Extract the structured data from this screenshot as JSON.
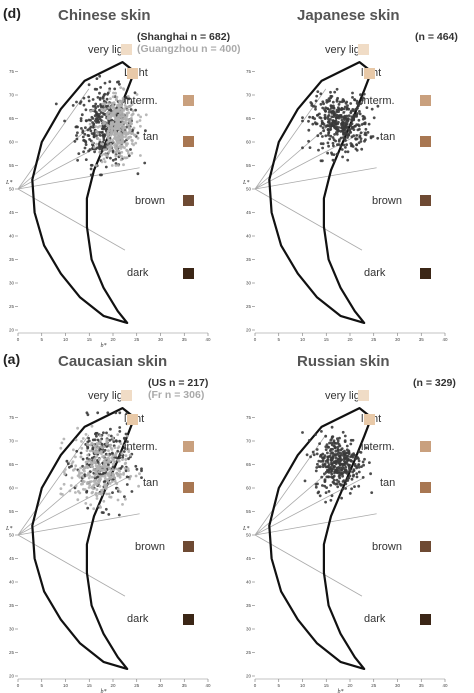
{
  "figure": {
    "panel_letters": [
      {
        "id": "top",
        "text": "(d)"
      },
      {
        "id": "bottom",
        "text": "(a)"
      }
    ]
  },
  "colors": {
    "outline": "#111111",
    "sector_line": "#aaaaaa",
    "series_dark": "#3a3a3a",
    "series_light": "#b0b0b0",
    "note_dark": "#333333",
    "note_light": "#aaaaaa",
    "swatch_very_light": "#f0dcc6",
    "swatch_light": "#e8c9a8",
    "swatch_intermediate": "#c9a07e",
    "swatch_tan": "#a87752",
    "swatch_brown": "#6e4a33",
    "swatch_dark": "#3b2616"
  },
  "categories": [
    "very light",
    "light",
    "interm.",
    "tan",
    "brown",
    "dark"
  ],
  "chart_data": [
    {
      "type": "scatter",
      "title": "Chinese skin",
      "xlabel": "b*",
      "ylabel": "L*",
      "xlim": [
        0,
        40
      ],
      "ylim": [
        20,
        80
      ],
      "xticks": [
        0,
        5,
        10,
        15,
        20,
        25,
        30,
        35,
        40
      ],
      "yticks": [
        20,
        25,
        30,
        35,
        40,
        45,
        50,
        55,
        60,
        65,
        70,
        75
      ],
      "grid": false,
      "category_labels": [
        "very light",
        "Light",
        "interm.",
        "tan",
        "brown",
        "dark"
      ],
      "notes": [
        {
          "text": "(Shanghai n = 682)",
          "tone": "dark"
        },
        {
          "text": "(Guangzhou n = 400)",
          "tone": "light"
        }
      ],
      "series": [
        {
          "name": "Shanghai n = 682",
          "color": "#3a3a3a",
          "n": 682,
          "cluster": {
            "b_mean": 18.5,
            "b_sd": 3.0,
            "L_mean": 63.5,
            "L_sd": 4.0,
            "b_range": [
              8,
              28
            ],
            "L_range": [
              53,
              74
            ]
          }
        },
        {
          "name": "Guangzhou n = 400",
          "color": "#b0b0b0",
          "n": 400,
          "cluster": {
            "b_mean": 21.0,
            "b_sd": 2.0,
            "L_mean": 63.0,
            "L_sd": 3.5,
            "b_range": [
              14,
              27
            ],
            "L_range": [
              55,
              72
            ]
          }
        }
      ]
    },
    {
      "type": "scatter",
      "title": "Japanese skin",
      "xlabel": "",
      "ylabel": "L*",
      "xlim": [
        0,
        40
      ],
      "ylim": [
        20,
        80
      ],
      "xticks": [
        0,
        5,
        10,
        15,
        20,
        25,
        30,
        35,
        40
      ],
      "yticks": [
        20,
        25,
        30,
        35,
        40,
        45,
        50,
        55,
        60,
        65,
        70,
        75
      ],
      "grid": false,
      "category_labels": [
        "very light",
        "light",
        "interm.",
        "tan",
        "brown",
        "dark"
      ],
      "notes": [
        {
          "text": "(n = 464)",
          "tone": "dark"
        }
      ],
      "series": [
        {
          "name": "n = 464",
          "color": "#3a3a3a",
          "n": 464,
          "cluster": {
            "b_mean": 18.0,
            "b_sd": 3.0,
            "L_mean": 64.0,
            "L_sd": 3.0,
            "b_range": [
              10,
              27
            ],
            "L_range": [
              56,
              72
            ]
          }
        }
      ]
    },
    {
      "type": "scatter",
      "title": "Caucasian skin",
      "xlabel": "b*",
      "ylabel": "L*",
      "xlim": [
        0,
        40
      ],
      "ylim": [
        20,
        80
      ],
      "xticks": [
        0,
        5,
        10,
        15,
        20,
        25,
        30,
        35,
        40
      ],
      "yticks": [
        20,
        25,
        30,
        35,
        40,
        45,
        50,
        55,
        60,
        65,
        70,
        75
      ],
      "grid": false,
      "category_labels": [
        "very light",
        "light",
        "interm.",
        "tan",
        "brown",
        "dark"
      ],
      "notes": [
        {
          "text": "(US n = 217)",
          "tone": "dark"
        },
        {
          "text": "(Fr n = 306)",
          "tone": "light"
        }
      ],
      "series": [
        {
          "name": "US n = 217",
          "color": "#3a3a3a",
          "n": 217,
          "cluster": {
            "b_mean": 18.0,
            "b_sd": 3.0,
            "L_mean": 65.5,
            "L_sd": 4.5,
            "b_range": [
              9,
              26
            ],
            "L_range": [
              54,
              76
            ]
          }
        },
        {
          "name": "Fr n = 306",
          "color": "#b0b0b0",
          "n": 306,
          "cluster": {
            "b_mean": 17.0,
            "b_sd": 3.0,
            "L_mean": 64.0,
            "L_sd": 3.5,
            "b_range": [
              9,
              26
            ],
            "L_range": [
              54,
              74
            ]
          }
        }
      ]
    },
    {
      "type": "scatter",
      "title": "Russian skin",
      "xlabel": "b*",
      "ylabel": "L*",
      "xlim": [
        0,
        40
      ],
      "ylim": [
        20,
        80
      ],
      "xticks": [
        0,
        5,
        10,
        15,
        20,
        25,
        30,
        35,
        40
      ],
      "yticks": [
        20,
        25,
        30,
        35,
        40,
        45,
        50,
        55,
        60,
        65,
        70,
        75
      ],
      "grid": false,
      "category_labels": [
        "very light",
        "light",
        "interm.",
        "tan",
        "brown",
        "dark"
      ],
      "notes": [
        {
          "text": "(n = 329)",
          "tone": "dark"
        }
      ],
      "series": [
        {
          "name": "n = 329",
          "color": "#3a3a3a",
          "n": 329,
          "cluster": {
            "b_mean": 17.5,
            "b_sd": 2.5,
            "L_mean": 65.5,
            "L_sd": 3.0,
            "b_range": [
              10,
              25
            ],
            "L_range": [
              57,
              73
            ]
          }
        }
      ]
    }
  ]
}
